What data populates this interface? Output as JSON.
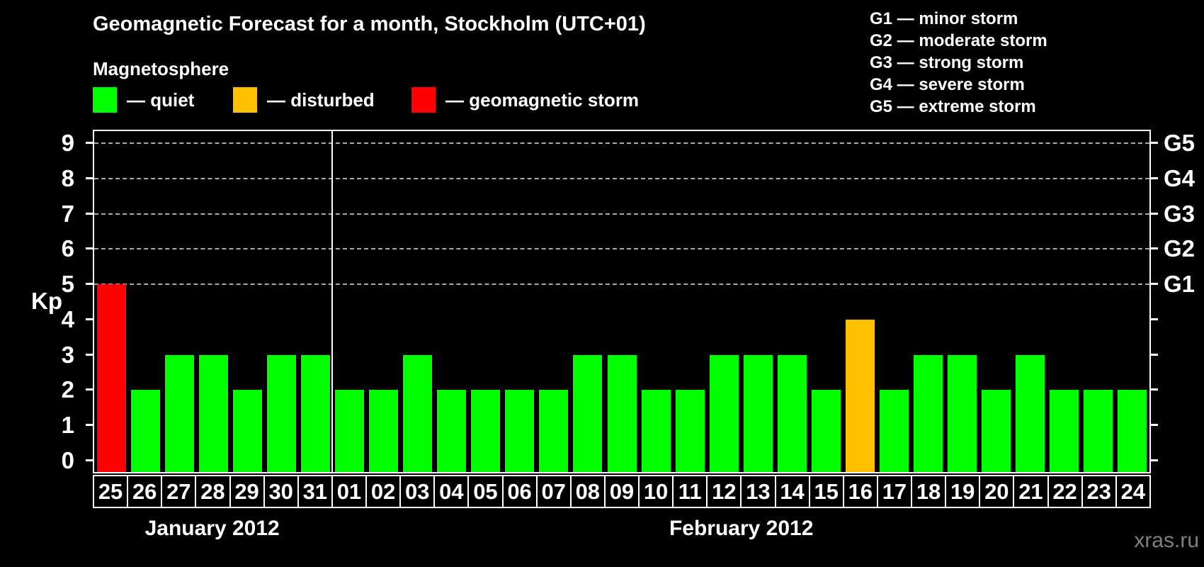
{
  "title": "Geomagnetic Forecast for a month, Stockholm (UTC+01)",
  "legend": {
    "heading": "Magnetosphere",
    "items": [
      {
        "key": "quiet",
        "label": "— quiet"
      },
      {
        "key": "disturbed",
        "label": "— disturbed"
      },
      {
        "key": "storm",
        "label": "— geomagnetic storm"
      }
    ]
  },
  "g_scale_legend": [
    "G1 — minor storm",
    "G2 — moderate storm",
    "G3 — strong storm",
    "G4 — severe storm",
    "G5 — extreme storm"
  ],
  "colors": {
    "quiet": "#00ff00",
    "disturbed": "#ffc000",
    "storm": "#ff0000",
    "background": "#000000",
    "text": "#ffffff",
    "grid": "#aaaaaa",
    "watermark": "#808080"
  },
  "chart_data": {
    "type": "bar",
    "title": "Geomagnetic Forecast for a month, Stockholm (UTC+01)",
    "ylabel": "Kp",
    "ylim": [
      0,
      9
    ],
    "yticks": [
      0,
      1,
      2,
      3,
      4,
      5,
      6,
      7,
      8,
      9
    ],
    "gridlines_at": [
      5,
      6,
      7,
      8,
      9
    ],
    "grid": "dashed horizontal at storm levels only",
    "right_axis_labels": [
      {
        "label": "G1",
        "kp": 5
      },
      {
        "label": "G2",
        "kp": 6
      },
      {
        "label": "G3",
        "kp": 7
      },
      {
        "label": "G4",
        "kp": 8
      },
      {
        "label": "G5",
        "kp": 9
      }
    ],
    "categories": [
      "25",
      "26",
      "27",
      "28",
      "29",
      "30",
      "31",
      "01",
      "02",
      "03",
      "04",
      "05",
      "06",
      "07",
      "08",
      "09",
      "10",
      "11",
      "12",
      "13",
      "14",
      "15",
      "16",
      "17",
      "18",
      "19",
      "20",
      "21",
      "22",
      "23",
      "24"
    ],
    "values": [
      5,
      2,
      3,
      3,
      2,
      3,
      3,
      2,
      2,
      3,
      2,
      2,
      2,
      2,
      3,
      3,
      2,
      2,
      3,
      3,
      3,
      2,
      4,
      2,
      3,
      3,
      2,
      3,
      2,
      2,
      2
    ],
    "statuses": [
      "storm",
      "quiet",
      "quiet",
      "quiet",
      "quiet",
      "quiet",
      "quiet",
      "quiet",
      "quiet",
      "quiet",
      "quiet",
      "quiet",
      "quiet",
      "quiet",
      "quiet",
      "quiet",
      "quiet",
      "quiet",
      "quiet",
      "quiet",
      "quiet",
      "quiet",
      "disturbed",
      "quiet",
      "quiet",
      "quiet",
      "quiet",
      "quiet",
      "quiet",
      "quiet",
      "quiet"
    ],
    "months": [
      {
        "label": "January 2012",
        "days": 7
      },
      {
        "label": "February 2012",
        "days": 24
      }
    ]
  },
  "watermark": "xras.ru"
}
